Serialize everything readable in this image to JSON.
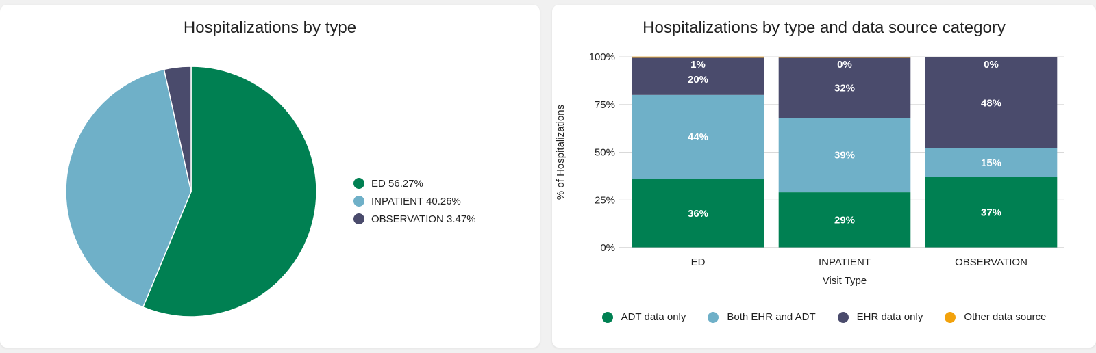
{
  "colors": {
    "green": "#008052",
    "lightblue": "#6fb0c8",
    "navy": "#4a4b6c",
    "orange": "#f2a20c"
  },
  "pie_card": {
    "title": "Hospitalizations by type",
    "legend": [
      {
        "label": "ED 56.27%",
        "color": "#008052"
      },
      {
        "label": "INPATIENT 40.26%",
        "color": "#6fb0c8"
      },
      {
        "label": "OBSERVATION 3.47%",
        "color": "#4a4b6c"
      }
    ]
  },
  "bar_card": {
    "title": "Hospitalizations by type and data source category",
    "legend": [
      {
        "label": "ADT data only",
        "color": "#008052"
      },
      {
        "label": "Both EHR and ADT",
        "color": "#6fb0c8"
      },
      {
        "label": "EHR data only",
        "color": "#4a4b6c"
      },
      {
        "label": "Other data source",
        "color": "#f2a20c"
      }
    ]
  },
  "chart_data": [
    {
      "type": "pie",
      "title": "Hospitalizations by type",
      "categories": [
        "ED",
        "INPATIENT",
        "OBSERVATION"
      ],
      "values": [
        56.27,
        40.26,
        3.47
      ],
      "legend_position": "right"
    },
    {
      "type": "bar",
      "stacked": true,
      "title": "Hospitalizations by type and data source category",
      "xlabel": "Visit Type",
      "ylabel": "% of Hospitalizations",
      "ylim": [
        0,
        100
      ],
      "yticks": [
        "0%",
        "25%",
        "50%",
        "75%",
        "100%"
      ],
      "categories": [
        "ED",
        "INPATIENT",
        "OBSERVATION"
      ],
      "series": [
        {
          "name": "ADT data only",
          "values": [
            36,
            29,
            37
          ],
          "labels": [
            "36%",
            "29%",
            "37%"
          ]
        },
        {
          "name": "Both EHR and ADT",
          "values": [
            44,
            39,
            15
          ],
          "labels": [
            "44%",
            "39%",
            "15%"
          ]
        },
        {
          "name": "EHR data only",
          "values": [
            19.5,
            31.5,
            47.7
          ],
          "labels": [
            "20%",
            "32%",
            "48%"
          ]
        },
        {
          "name": "Other data source",
          "values": [
            0.6,
            0.3,
            0.3
          ],
          "labels": [
            "1%",
            "0%",
            "0%"
          ]
        }
      ],
      "legend_position": "bottom"
    }
  ]
}
